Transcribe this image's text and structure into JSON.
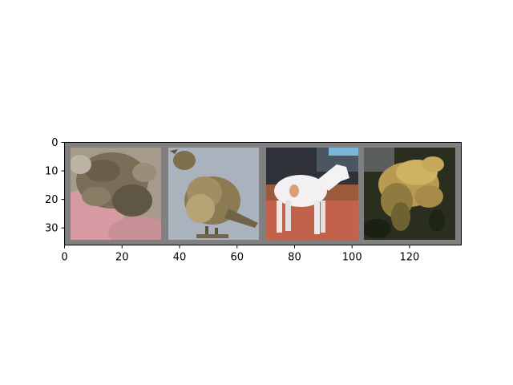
{
  "figure": {
    "x_ticks": [
      "0",
      "20",
      "40",
      "60",
      "80",
      "100",
      "120"
    ],
    "y_ticks": [
      "0",
      "10",
      "20",
      "30"
    ],
    "x_range": [
      0,
      138
    ],
    "y_range": [
      0,
      36
    ]
  },
  "images": [
    {
      "subject": "frog-held-in-hand"
    },
    {
      "subject": "sparrow-bird"
    },
    {
      "subject": "white-horse"
    },
    {
      "subject": "frog-on-dark-background"
    }
  ],
  "colors": {
    "grid_border": "#808080",
    "background": "#ffffff"
  }
}
